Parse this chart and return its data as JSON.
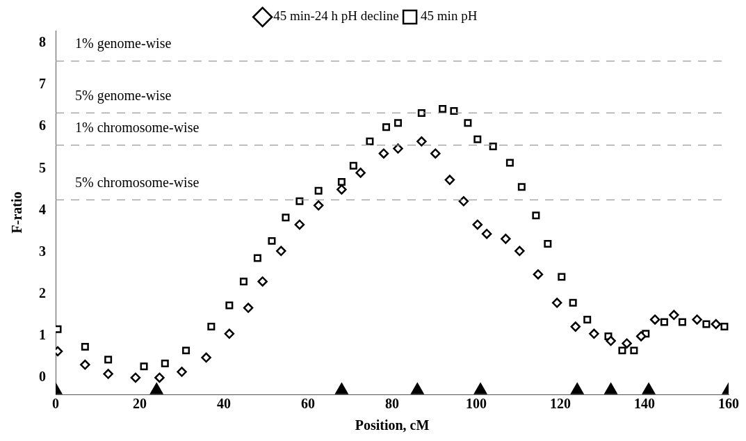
{
  "chart_data": {
    "type": "scatter",
    "xlabel": "Position, cM",
    "ylabel": "F-ratio",
    "xlim": [
      0,
      160
    ],
    "xticks": [
      0,
      20,
      40,
      60,
      80,
      100,
      120,
      140,
      160
    ],
    "ylim": [
      -0.4,
      8.3
    ],
    "yticks": [
      0,
      1,
      2,
      3,
      4,
      5,
      6,
      7,
      8
    ],
    "grid": false,
    "legend": "top",
    "series": [
      {
        "name": "45 min-24 h pH decline",
        "color": "#000000",
        "marker": "diamond",
        "x": [
          0.5,
          7,
          12.5,
          19,
          24.7,
          30,
          35.8,
          41.3,
          45.8,
          49.2,
          53.6,
          58,
          62.5,
          68,
          72.5,
          78,
          81.4,
          87,
          90.3,
          93.7,
          97,
          100.3,
          102.5,
          107,
          110.3,
          114.7,
          119.2,
          123.6,
          128,
          132,
          135.8,
          139.2,
          142.5,
          147,
          152.5,
          157
        ],
        "values": [
          0.63,
          0.31,
          0.09,
          0,
          0,
          0.14,
          0.48,
          1.05,
          1.67,
          2.3,
          3.03,
          3.66,
          4.12,
          4.5,
          4.9,
          5.36,
          5.48,
          5.65,
          5.36,
          4.73,
          4.22,
          3.66,
          3.44,
          3.32,
          3.03,
          2.47,
          1.79,
          1.22,
          1.05,
          0.88,
          0.82,
          0.99,
          1.39,
          1.5,
          1.39,
          1.28
        ]
      },
      {
        "name": "45 min pH",
        "color": "#000000",
        "marker": "square",
        "x": [
          0.5,
          7,
          12.5,
          21,
          26,
          31,
          37,
          41.3,
          44.7,
          48,
          51.4,
          54.7,
          58,
          62.5,
          68,
          70.8,
          74.7,
          78.6,
          81.4,
          87,
          92,
          94.7,
          98,
          100.3,
          104,
          108,
          110.8,
          114.2,
          117,
          120.3,
          123,
          126.4,
          131.4,
          134.7,
          137.5,
          140.3,
          144.7,
          149,
          154.7,
          159
        ],
        "values": [
          1.16,
          0.74,
          0.43,
          0.27,
          0.34,
          0.65,
          1.22,
          1.73,
          2.3,
          2.86,
          3.27,
          3.83,
          4.22,
          4.47,
          4.68,
          5.07,
          5.65,
          5.99,
          6.09,
          6.33,
          6.43,
          6.38,
          6.09,
          5.7,
          5.53,
          5.14,
          4.56,
          3.88,
          3.2,
          2.41,
          1.79,
          1.39,
          0.99,
          0.65,
          0.65,
          1.05,
          1.33,
          1.33,
          1.28,
          1.22
        ]
      },
      {
        "color": "#000000",
        "marker": "triangle",
        "x": [
          0,
          24,
          68,
          86,
          101,
          124,
          132,
          141,
          160
        ],
        "values": [
          -0.3,
          -0.3,
          -0.3,
          -0.3,
          -0.3,
          -0.3,
          -0.3,
          -0.3,
          -0.3
        ]
      }
    ],
    "ref_lines": [
      {
        "axis": "y",
        "value": 7.57,
        "label": "1% genome-wise",
        "color": "#999999",
        "line_style": "dashed"
      },
      {
        "axis": "y",
        "value": 6.33,
        "label": "5% genome-wise",
        "color": "#999999",
        "line_style": "dashed"
      },
      {
        "axis": "y",
        "value": 5.56,
        "label": "1% chromosome-wise",
        "color": "#999999",
        "line_style": "dashed"
      },
      {
        "axis": "y",
        "value": 4.25,
        "label": "5% chromosome-wise",
        "color": "#999999",
        "line_style": "dashed"
      }
    ]
  }
}
